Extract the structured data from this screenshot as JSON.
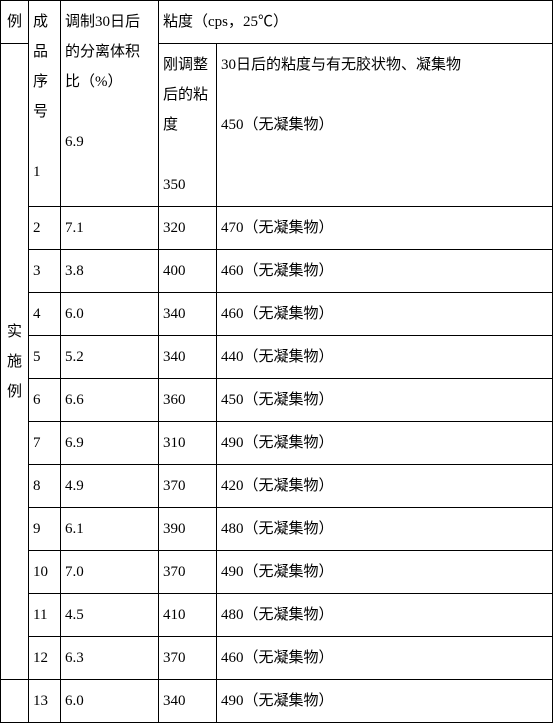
{
  "header": {
    "category_label": "例",
    "seq_label": "成品序号",
    "sep_label": "调制30日后的分离体积比（%）",
    "viscosity_group_label": "粘度（cps，25℃）",
    "visc_init_label": "刚调整后的粘度",
    "visc_30d_label": "30日后的粘度与有无胶状物、凝集物"
  },
  "category": {
    "label": "实施例"
  },
  "rows": [
    {
      "seq": "1",
      "sep": "6.9",
      "visc_init": "350",
      "visc_30d": "450（无凝集物）"
    },
    {
      "seq": "2",
      "sep": "7.1",
      "visc_init": "320",
      "visc_30d": "470（无凝集物）"
    },
    {
      "seq": "3",
      "sep": "3.8",
      "visc_init": "400",
      "visc_30d": "460（无凝集物）"
    },
    {
      "seq": "4",
      "sep": "6.0",
      "visc_init": "340",
      "visc_30d": "460（无凝集物）"
    },
    {
      "seq": "5",
      "sep": "5.2",
      "visc_init": "340",
      "visc_30d": "440（无凝集物）"
    },
    {
      "seq": "6",
      "sep": "6.6",
      "visc_init": "360",
      "visc_30d": "450（无凝集物）"
    },
    {
      "seq": "7",
      "sep": "6.9",
      "visc_init": "310",
      "visc_30d": "490（无凝集物）"
    },
    {
      "seq": "8",
      "sep": "4.9",
      "visc_init": "370",
      "visc_30d": "420（无凝集物）"
    },
    {
      "seq": "9",
      "sep": "6.1",
      "visc_init": "390",
      "visc_30d": "480（无凝集物）"
    },
    {
      "seq": "10",
      "sep": "7.0",
      "visc_init": "370",
      "visc_30d": "490（无凝集物）"
    },
    {
      "seq": "11",
      "sep": "4.5",
      "visc_init": "410",
      "visc_30d": "480（无凝集物）"
    },
    {
      "seq": "12",
      "sep": "6.3",
      "visc_init": "370",
      "visc_30d": "460（无凝集物）"
    },
    {
      "seq": "13",
      "sep": "6.0",
      "visc_init": "340",
      "visc_30d": "490（无凝集物）"
    }
  ],
  "style": {
    "font_family": "SimSun",
    "font_size_pt": 11,
    "border_color": "#000000",
    "background_color": "#ffffff",
    "text_color": "#000000"
  }
}
